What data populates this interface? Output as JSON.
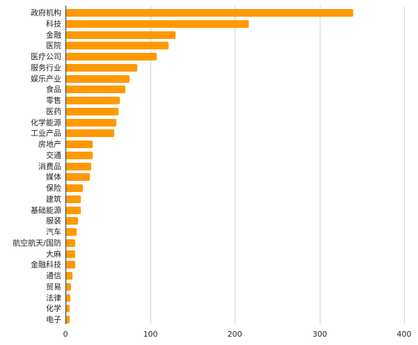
{
  "chart_data": {
    "type": "bar",
    "orientation": "horizontal",
    "title": "",
    "xlabel": "",
    "ylabel": "",
    "xlim": [
      0,
      400
    ],
    "x_ticks": [
      0,
      100,
      200,
      300,
      400
    ],
    "grid": true,
    "legend": null,
    "bar_color": "#ff9900",
    "categories": [
      "政府机构",
      "科技",
      "金融",
      "医院",
      "医疗公司",
      "服务行业",
      "娱乐产业",
      "食品",
      "零售",
      "医药",
      "化学能源",
      "工业产品",
      "房地产",
      "交通",
      "消费品",
      "媒体",
      "保险",
      "建筑",
      "基础能源",
      "服装",
      "汽车",
      "航空航天/国防",
      "大麻",
      "金融科技",
      "通信",
      "贸易",
      "法律",
      "化学",
      "电子"
    ],
    "values": [
      339,
      216,
      129,
      121,
      107,
      84,
      75,
      70,
      63,
      62,
      59,
      57,
      31,
      31,
      30,
      28,
      20,
      17,
      17,
      14,
      12,
      11,
      11,
      11,
      7,
      6,
      5,
      4,
      4
    ]
  }
}
